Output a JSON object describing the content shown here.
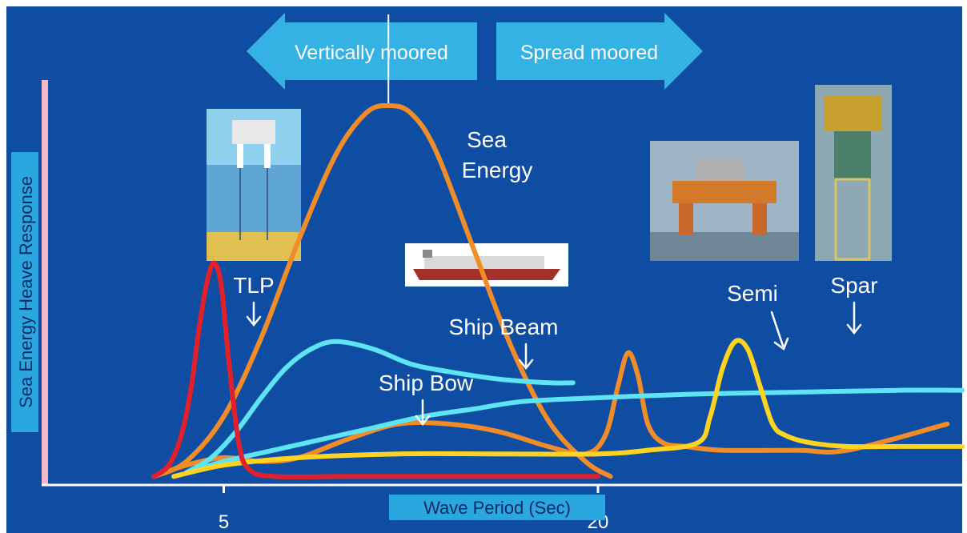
{
  "chart_data": {
    "type": "line",
    "ylabel": "Sea Energy Heave Response",
    "xlabel": "Wave Period (Sec)",
    "x_ticks": [
      {
        "value": 5,
        "label": "5"
      },
      {
        "value": 20,
        "label": "20"
      }
    ],
    "xlim": [
      -2.3,
      34.6
    ],
    "ylim": [
      0,
      1
    ],
    "grid": false,
    "legend": "none",
    "mooring": {
      "left_label": "Vertically moored",
      "right_label": "Spread moored",
      "divider_x": 11.6
    },
    "series": [
      {
        "name": "TLP",
        "color": "#e3202a",
        "x": [
          2.2,
          2.8,
          3.3,
          3.7,
          4.0,
          4.3,
          4.6,
          4.9,
          5.2,
          5.6,
          6.0,
          7.0,
          10.0,
          15.0,
          20.0
        ],
        "y": [
          0.01,
          0.04,
          0.12,
          0.25,
          0.4,
          0.52,
          0.58,
          0.52,
          0.32,
          0.1,
          0.03,
          0.01,
          0.01,
          0.01,
          0.01
        ]
      },
      {
        "name": "Sea Energy",
        "color": "#f28c28",
        "x": [
          2.2,
          3.5,
          5.0,
          6.5,
          8.0,
          9.5,
          10.7,
          11.6,
          12.5,
          13.5,
          15.0,
          16.5,
          18.0,
          19.5,
          20.5
        ],
        "y": [
          0.01,
          0.05,
          0.17,
          0.38,
          0.64,
          0.87,
          0.98,
          1.0,
          0.98,
          0.88,
          0.62,
          0.36,
          0.16,
          0.05,
          0.01
        ]
      },
      {
        "name": "Ship Beam",
        "color": "#5ee4f2",
        "x": [
          3.5,
          4.5,
          5.5,
          6.5,
          7.5,
          8.5,
          9.5,
          11.0,
          12.5,
          14.0,
          16.0,
          18.0,
          19.0
        ],
        "y": [
          0.02,
          0.06,
          0.13,
          0.22,
          0.3,
          0.35,
          0.37,
          0.35,
          0.31,
          0.29,
          0.27,
          0.26,
          0.26
        ]
      },
      {
        "name": "Ship Bow",
        "color": "#5ee4f2",
        "x": [
          3.5,
          5.0,
          7.0,
          9.0,
          11.0,
          13.0,
          15.0,
          17.0,
          20.0,
          24.0,
          28.0,
          32.0,
          34.6
        ],
        "y": [
          0.02,
          0.05,
          0.08,
          0.11,
          0.14,
          0.17,
          0.19,
          0.21,
          0.22,
          0.23,
          0.235,
          0.24,
          0.24
        ]
      },
      {
        "name": "Semi",
        "color": "#f28c28",
        "x": [
          2.2,
          3.5,
          5.0,
          6.5,
          8.0,
          10.0,
          12.0,
          14.0,
          16.0,
          18.0,
          19.5,
          20.3,
          20.8,
          21.2,
          21.6,
          22.0,
          22.6,
          23.5,
          25.0,
          28.0,
          30.0,
          34.0
        ],
        "y": [
          0.01,
          0.04,
          0.06,
          0.05,
          0.06,
          0.11,
          0.15,
          0.15,
          0.13,
          0.09,
          0.07,
          0.12,
          0.25,
          0.34,
          0.28,
          0.15,
          0.1,
          0.09,
          0.08,
          0.08,
          0.08,
          0.15
        ]
      },
      {
        "name": "Spar",
        "color": "#ffd320",
        "x": [
          3.0,
          5.0,
          8.0,
          12.0,
          16.0,
          20.0,
          22.0,
          24.0,
          24.5,
          25.0,
          25.5,
          26.0,
          26.5,
          27.0,
          27.5,
          28.5,
          30.0,
          32.0,
          34.6
        ],
        "y": [
          0.01,
          0.04,
          0.06,
          0.07,
          0.07,
          0.07,
          0.08,
          0.1,
          0.17,
          0.3,
          0.37,
          0.35,
          0.25,
          0.15,
          0.12,
          0.1,
          0.09,
          0.09,
          0.09
        ]
      }
    ],
    "labels": [
      {
        "name": "tlp",
        "text": "TLP"
      },
      {
        "name": "sea-energy-line1",
        "text": "Sea"
      },
      {
        "name": "sea-energy-line2",
        "text": "Energy"
      },
      {
        "name": "ship-beam",
        "text": "Ship Beam"
      },
      {
        "name": "ship-bow",
        "text": "Ship Bow"
      },
      {
        "name": "semi",
        "text": "Semi"
      },
      {
        "name": "spar",
        "text": "Spar"
      }
    ],
    "colors": {
      "background": "#0f4da3",
      "arrow": "#35b2e4",
      "axis": "#ffffff",
      "y_axis_bar": "#f2b8c6",
      "xlabel_text": "#0b2a66"
    }
  }
}
